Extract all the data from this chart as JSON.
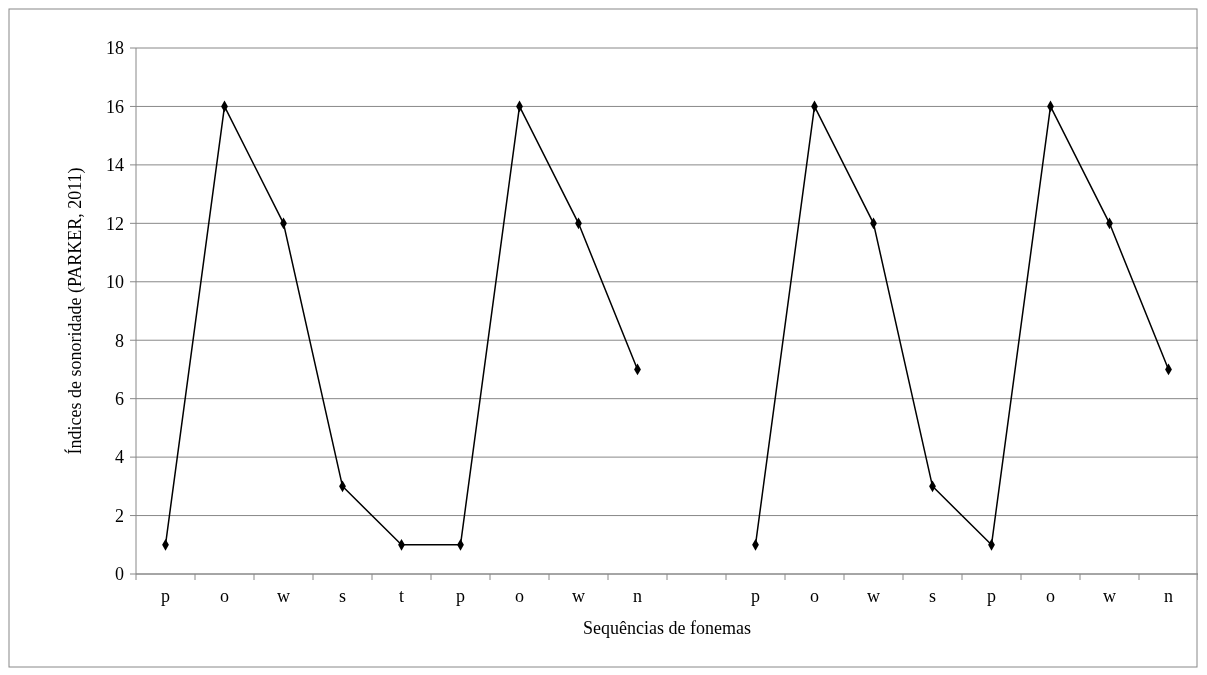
{
  "chart_data": {
    "type": "line",
    "xlabel": "Sequências de fonemas",
    "ylabel": "Índices de sonoridade (PARKER, 2011)",
    "categories": [
      "p",
      "o",
      "w",
      "s",
      "t",
      "p",
      "o",
      "w",
      "n",
      null,
      "p",
      "o",
      "w",
      "s",
      "p",
      "o",
      "w",
      "n"
    ],
    "series": [
      {
        "color": "#000000",
        "values": [
          1,
          16,
          12,
          3,
          1,
          1,
          16,
          12,
          7,
          null,
          1,
          16,
          12,
          3,
          1,
          16,
          12,
          7
        ]
      }
    ],
    "ylim": [
      0,
      18
    ],
    "yticks": [
      0,
      2,
      4,
      6,
      8,
      10,
      12,
      14,
      16,
      18
    ],
    "grid": "y",
    "marker": "diamond",
    "line_style": "solid"
  }
}
